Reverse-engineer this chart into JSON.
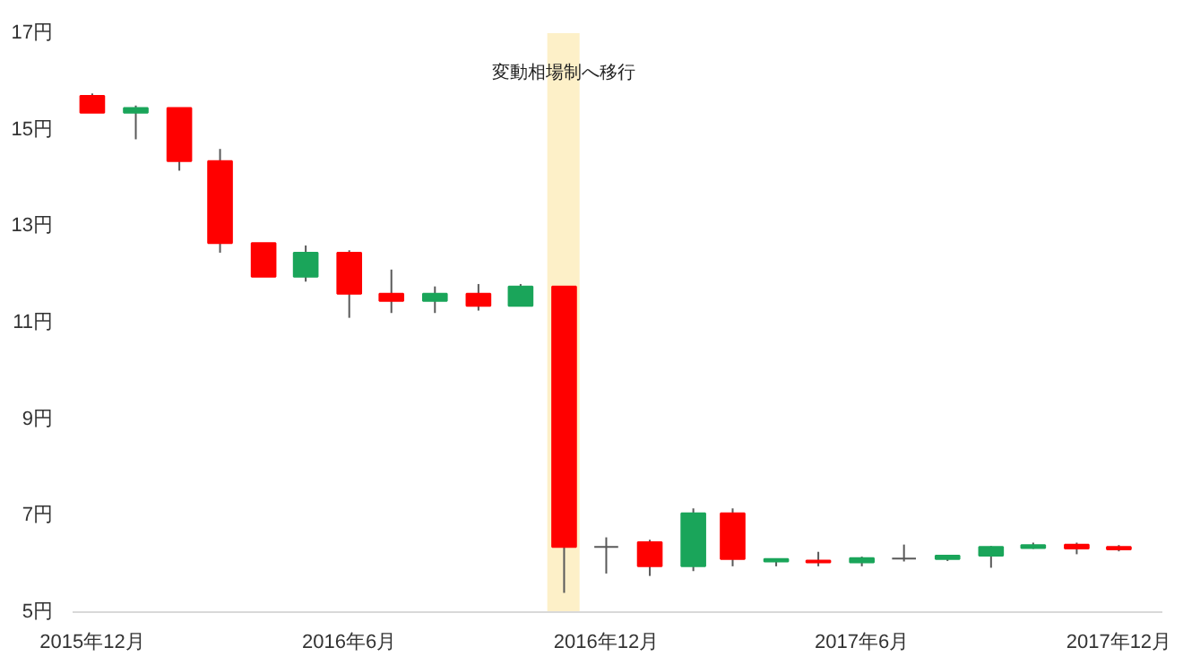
{
  "chart_data": {
    "type": "candlestick",
    "x": [
      "2015-12",
      "2016-01",
      "2016-02",
      "2016-03",
      "2016-04",
      "2016-05",
      "2016-06",
      "2016-07",
      "2016-08",
      "2016-09",
      "2016-10",
      "2016-11",
      "2016-12",
      "2017-01",
      "2017-02",
      "2017-03",
      "2017-04",
      "2017-05",
      "2017-06",
      "2017-07",
      "2017-08",
      "2017-09",
      "2017-10",
      "2017-11",
      "2017-12"
    ],
    "ohlc": [
      [
        15.7,
        15.75,
        15.35,
        15.35
      ],
      [
        15.35,
        15.5,
        14.8,
        15.45
      ],
      [
        15.45,
        15.45,
        14.15,
        14.35
      ],
      [
        14.35,
        14.6,
        12.45,
        12.65
      ],
      [
        12.65,
        12.65,
        11.95,
        11.95
      ],
      [
        11.95,
        12.6,
        11.85,
        12.45
      ],
      [
        12.45,
        12.5,
        11.1,
        11.6
      ],
      [
        11.6,
        12.1,
        11.2,
        11.45
      ],
      [
        11.45,
        11.75,
        11.2,
        11.6
      ],
      [
        11.6,
        11.8,
        11.25,
        11.35
      ],
      [
        11.35,
        11.8,
        11.35,
        11.75
      ],
      [
        11.75,
        11.75,
        5.4,
        6.35
      ],
      [
        6.35,
        6.55,
        5.8,
        6.35
      ],
      [
        6.45,
        6.5,
        5.75,
        5.95
      ],
      [
        5.95,
        7.15,
        5.85,
        7.05
      ],
      [
        7.05,
        7.15,
        5.95,
        6.1
      ],
      [
        6.05,
        6.1,
        5.95,
        6.1
      ],
      [
        6.07,
        6.25,
        5.95,
        6.03
      ],
      [
        6.03,
        6.15,
        5.95,
        6.12
      ],
      [
        6.11,
        6.4,
        6.05,
        6.11
      ],
      [
        6.1,
        6.18,
        6.06,
        6.17
      ],
      [
        6.17,
        6.37,
        5.92,
        6.35
      ],
      [
        6.33,
        6.44,
        6.31,
        6.39
      ],
      [
        6.4,
        6.44,
        6.2,
        6.32
      ],
      [
        6.35,
        6.39,
        6.26,
        6.3
      ]
    ],
    "colors": [
      "#ff0000",
      "#1aa55a",
      "#ff0000",
      "#ff0000",
      "#ff0000",
      "#1aa55a",
      "#ff0000",
      "#ff0000",
      "#1aa55a",
      "#ff0000",
      "#1aa55a",
      "#ff0000",
      "#595959",
      "#ff0000",
      "#1aa55a",
      "#ff0000",
      "#1aa55a",
      "#ff0000",
      "#1aa55a",
      "#595959",
      "#1aa55a",
      "#1aa55a",
      "#1aa55a",
      "#ff0000",
      "#ff0000"
    ],
    "xlim": [
      "2015-11-17",
      "2018-01-01"
    ],
    "xticks": [
      {
        "value": "2015-12",
        "label": "2015年12月"
      },
      {
        "value": "2016-06",
        "label": "2016年6月"
      },
      {
        "value": "2016-12",
        "label": "2016年12月"
      },
      {
        "value": "2017-06",
        "label": "2017年6月"
      },
      {
        "value": "2017-12",
        "label": "2017年12月"
      }
    ],
    "ylim": [
      5,
      17
    ],
    "yticks": [
      {
        "value": 5,
        "label": "5円"
      },
      {
        "value": 7,
        "label": "7円"
      },
      {
        "value": 9,
        "label": "9円"
      },
      {
        "value": 11,
        "label": "11円"
      },
      {
        "value": 13,
        "label": "13円"
      },
      {
        "value": 15,
        "label": "15円"
      },
      {
        "value": 17,
        "label": "17円"
      }
    ],
    "bands": [
      {
        "axis": "x",
        "from": "2016-10-20",
        "to": "2016-11-12",
        "label": "変動相場制へ移行",
        "color": "#fdf0c8"
      }
    ],
    "grid": false
  }
}
